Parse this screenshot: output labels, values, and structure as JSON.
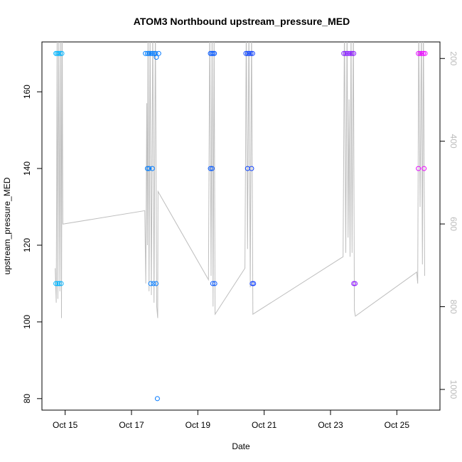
{
  "chart_data": {
    "type": "scatter",
    "title": "ATOM3 Northbound upstream_pressure_MED",
    "xlabel": "Date",
    "ylabel": "upstream_pressure_MED",
    "x_ticks": [
      {
        "label": "Oct 15",
        "day": 15
      },
      {
        "label": "Oct 17",
        "day": 17
      },
      {
        "label": "Oct 19",
        "day": 19
      },
      {
        "label": "Oct 21",
        "day": 21
      },
      {
        "label": "Oct 23",
        "day": 23
      },
      {
        "label": "Oct 25",
        "day": 25
      }
    ],
    "y_ticks": [
      {
        "label": "80",
        "value": 80
      },
      {
        "label": "100",
        "value": 100
      },
      {
        "label": "120",
        "value": 120
      },
      {
        "label": "140",
        "value": 140
      },
      {
        "label": "160",
        "value": 160
      }
    ],
    "y2_ticks": [
      {
        "label": "200",
        "value": 200
      },
      {
        "label": "400",
        "value": 400
      },
      {
        "label": "600",
        "value": 600
      },
      {
        "label": "800",
        "value": 800
      },
      {
        "label": "1000",
        "value": 1000
      }
    ],
    "xlim": [
      14.3,
      26.3
    ],
    "ylim": [
      77,
      173
    ],
    "y2lim": [
      1050,
      160
    ],
    "y2_reversed": true,
    "grid": false,
    "colors": {
      "scatter_start": "#00bfff",
      "scatter_mid": "#0044ff",
      "scatter_end": "#ff00ff",
      "line": "#bebebe",
      "right_axis": "#bbbbbb"
    },
    "points": [
      {
        "x": 14.72,
        "y": 170
      },
      {
        "x": 14.76,
        "y": 170
      },
      {
        "x": 14.8,
        "y": 170
      },
      {
        "x": 14.85,
        "y": 170
      },
      {
        "x": 14.9,
        "y": 170
      },
      {
        "x": 14.72,
        "y": 110
      },
      {
        "x": 14.77,
        "y": 110
      },
      {
        "x": 14.82,
        "y": 110
      },
      {
        "x": 14.88,
        "y": 110
      },
      {
        "x": 17.42,
        "y": 170
      },
      {
        "x": 17.48,
        "y": 170
      },
      {
        "x": 17.53,
        "y": 170
      },
      {
        "x": 17.58,
        "y": 170
      },
      {
        "x": 17.63,
        "y": 170
      },
      {
        "x": 17.68,
        "y": 170
      },
      {
        "x": 17.73,
        "y": 170
      },
      {
        "x": 17.82,
        "y": 170
      },
      {
        "x": 17.48,
        "y": 140
      },
      {
        "x": 17.53,
        "y": 140
      },
      {
        "x": 17.63,
        "y": 140
      },
      {
        "x": 17.58,
        "y": 110
      },
      {
        "x": 17.66,
        "y": 110
      },
      {
        "x": 17.74,
        "y": 110
      },
      {
        "x": 17.75,
        "y": 169
      },
      {
        "x": 17.78,
        "y": 80
      },
      {
        "x": 19.38,
        "y": 170
      },
      {
        "x": 19.42,
        "y": 170
      },
      {
        "x": 19.46,
        "y": 170
      },
      {
        "x": 19.5,
        "y": 170
      },
      {
        "x": 19.38,
        "y": 140
      },
      {
        "x": 19.43,
        "y": 140
      },
      {
        "x": 19.45,
        "y": 110
      },
      {
        "x": 19.51,
        "y": 110
      },
      {
        "x": 20.45,
        "y": 170
      },
      {
        "x": 20.5,
        "y": 170
      },
      {
        "x": 20.55,
        "y": 170
      },
      {
        "x": 20.6,
        "y": 170
      },
      {
        "x": 20.65,
        "y": 170
      },
      {
        "x": 20.5,
        "y": 140
      },
      {
        "x": 20.62,
        "y": 140
      },
      {
        "x": 20.64,
        "y": 110
      },
      {
        "x": 20.68,
        "y": 110
      },
      {
        "x": 23.4,
        "y": 170
      },
      {
        "x": 23.45,
        "y": 170
      },
      {
        "x": 23.5,
        "y": 170
      },
      {
        "x": 23.55,
        "y": 170
      },
      {
        "x": 23.6,
        "y": 170
      },
      {
        "x": 23.65,
        "y": 170
      },
      {
        "x": 23.7,
        "y": 170
      },
      {
        "x": 23.7,
        "y": 110
      },
      {
        "x": 23.74,
        "y": 110
      },
      {
        "x": 25.65,
        "y": 170
      },
      {
        "x": 25.7,
        "y": 170
      },
      {
        "x": 25.75,
        "y": 170
      },
      {
        "x": 25.8,
        "y": 170
      },
      {
        "x": 25.85,
        "y": 170
      },
      {
        "x": 25.65,
        "y": 140
      },
      {
        "x": 25.82,
        "y": 140
      }
    ],
    "line": [
      {
        "x": 14.7,
        "y": 114
      },
      {
        "x": 14.73,
        "y": 105
      },
      {
        "x": 14.76,
        "y": 178
      },
      {
        "x": 14.78,
        "y": 106
      },
      {
        "x": 14.81,
        "y": 178
      },
      {
        "x": 14.84,
        "y": 108
      },
      {
        "x": 14.87,
        "y": 178
      },
      {
        "x": 14.89,
        "y": 101
      },
      {
        "x": 14.91,
        "y": 178
      },
      {
        "x": 14.93,
        "y": 125.5
      },
      {
        "x": 17.4,
        "y": 129
      },
      {
        "x": 17.43,
        "y": 110
      },
      {
        "x": 17.46,
        "y": 157
      },
      {
        "x": 17.48,
        "y": 120
      },
      {
        "x": 17.5,
        "y": 178
      },
      {
        "x": 17.53,
        "y": 108
      },
      {
        "x": 17.56,
        "y": 178
      },
      {
        "x": 17.6,
        "y": 107
      },
      {
        "x": 17.64,
        "y": 178
      },
      {
        "x": 17.68,
        "y": 105
      },
      {
        "x": 17.72,
        "y": 178
      },
      {
        "x": 17.76,
        "y": 104
      },
      {
        "x": 17.79,
        "y": 101
      },
      {
        "x": 17.8,
        "y": 134
      },
      {
        "x": 19.32,
        "y": 111
      },
      {
        "x": 19.36,
        "y": 178
      },
      {
        "x": 19.4,
        "y": 112
      },
      {
        "x": 19.43,
        "y": 178
      },
      {
        "x": 19.46,
        "y": 104
      },
      {
        "x": 19.49,
        "y": 178
      },
      {
        "x": 19.52,
        "y": 102
      },
      {
        "x": 20.42,
        "y": 114
      },
      {
        "x": 20.46,
        "y": 178
      },
      {
        "x": 20.5,
        "y": 119
      },
      {
        "x": 20.54,
        "y": 178
      },
      {
        "x": 20.58,
        "y": 109
      },
      {
        "x": 20.62,
        "y": 178
      },
      {
        "x": 20.66,
        "y": 102
      },
      {
        "x": 23.38,
        "y": 117
      },
      {
        "x": 23.42,
        "y": 178
      },
      {
        "x": 23.46,
        "y": 118
      },
      {
        "x": 23.5,
        "y": 178
      },
      {
        "x": 23.53,
        "y": 122
      },
      {
        "x": 23.56,
        "y": 158
      },
      {
        "x": 23.59,
        "y": 117
      },
      {
        "x": 23.62,
        "y": 178
      },
      {
        "x": 23.65,
        "y": 118
      },
      {
        "x": 23.69,
        "y": 178
      },
      {
        "x": 23.72,
        "y": 103
      },
      {
        "x": 23.75,
        "y": 101.5
      },
      {
        "x": 25.6,
        "y": 113
      },
      {
        "x": 25.63,
        "y": 110
      },
      {
        "x": 25.66,
        "y": 178
      },
      {
        "x": 25.7,
        "y": 130
      },
      {
        "x": 25.74,
        "y": 178
      },
      {
        "x": 25.77,
        "y": 115
      },
      {
        "x": 25.8,
        "y": 178
      },
      {
        "x": 25.84,
        "y": 112
      }
    ]
  }
}
